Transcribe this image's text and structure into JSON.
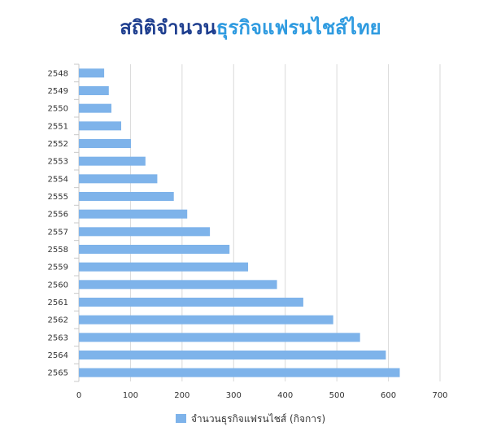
{
  "title_part1": "สถิติจำนวน",
  "title_part2": "ธุรกิจแฟรนไชส์ไทย",
  "colors": {
    "title_dark": "#1f3f8f",
    "title_light": "#2f9be0",
    "bar": "#7eb3ea",
    "grid": "#d9d9d9"
  },
  "chart_data": {
    "type": "bar",
    "orientation": "horizontal",
    "categories": [
      "2548",
      "2549",
      "2550",
      "2551",
      "2552",
      "2553",
      "2554",
      "2555",
      "2556",
      "2557",
      "2558",
      "2559",
      "2560",
      "2561",
      "2562",
      "2563",
      "2564",
      "2565"
    ],
    "series": [
      {
        "name": "จำนวนธุรกิจแฟรนไชส์ (กิจการ)",
        "values": [
          49,
          58,
          63,
          82,
          101,
          129,
          152,
          184,
          210,
          254,
          292,
          328,
          384,
          435,
          493,
          545,
          595,
          622
        ]
      }
    ],
    "xlim": [
      0,
      700
    ],
    "xticks": [
      "0",
      "100",
      "200",
      "300",
      "400",
      "500",
      "600",
      "700"
    ],
    "grid": true,
    "legend": "bottom"
  }
}
